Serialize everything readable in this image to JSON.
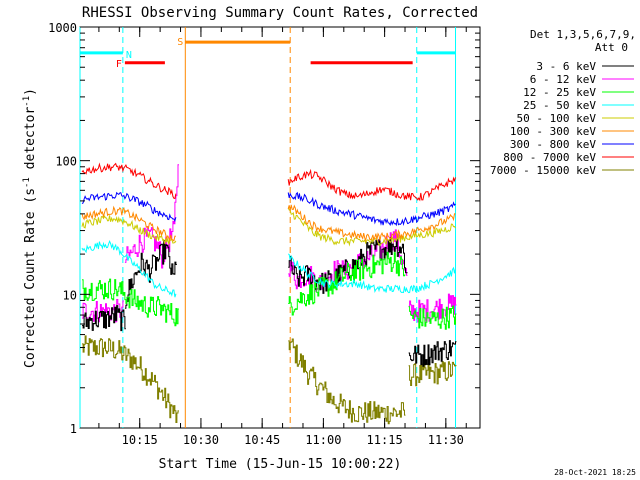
{
  "chart_data": {
    "type": "line",
    "title": "RHESSI Observing Summary Count Rates, Corrected",
    "ylabel": "Corrected Count Rate (s",
    "ylabel_sup1": "-1",
    "ylabel_mid": " detector",
    "ylabel_sup2": "-1",
    "ylabel_end": ")",
    "xlabel": "Start Time (15-Jun-15 10:00:22)",
    "x_unit": "minutes after 10:00:22",
    "xlim": [
      0,
      98
    ],
    "ylim": [
      1,
      1000
    ],
    "yscale": "log",
    "grid": false,
    "yticks": [
      {
        "label": "1",
        "value": 1
      },
      {
        "label": "10",
        "value": 10
      },
      {
        "label": "100",
        "value": 100
      },
      {
        "label": "1000",
        "value": 1000
      }
    ],
    "xticks": [
      {
        "label": "10:15",
        "value": 14.63
      },
      {
        "label": "10:30",
        "value": 29.63
      },
      {
        "label": "10:45",
        "value": 44.63
      },
      {
        "label": "11:00",
        "value": 59.63
      },
      {
        "label": "11:15",
        "value": 74.63
      },
      {
        "label": "11:30",
        "value": 89.63
      }
    ],
    "legend_header": [
      "Det 1,3,5,6,7,9,",
      "Att 0"
    ],
    "legend_position": "right",
    "timestamp": "28-Oct-2021 18:25",
    "series": [
      {
        "name": "3 - 6 keV",
        "color": "#000000",
        "kind": "band",
        "segments": [
          {
            "x": [
              0.5,
              3,
              6,
              9,
              10,
              11
            ],
            "y": [
              6,
              6.5,
              6.5,
              7,
              6.5,
              6
            ]
          },
          {
            "x": [
              11,
              13,
              15,
              17,
              19,
              21,
              22.5,
              23,
              23.6
            ],
            "y": [
              9,
              13,
              17,
              15,
              18,
              22,
              14,
              13,
              20
            ]
          },
          {
            "x": [
              51,
              53,
              56,
              59,
              62,
              65,
              68,
              70,
              73,
              75,
              77,
              79,
              80
            ],
            "y": [
              17,
              13,
              14,
              12,
              13,
              15,
              17,
              20,
              22,
              22,
              24,
              22,
              14
            ]
          },
          {
            "x": [
              80.5,
              84,
              88,
              92
            ],
            "y": [
              3.5,
              3.5,
              3.8,
              4
            ]
          }
        ]
      },
      {
        "name": "6 - 12 keV",
        "color": "#ff00ff",
        "kind": "band",
        "segments": [
          {
            "x": [
              0.5,
              3,
              6,
              9,
              10.5
            ],
            "y": [
              7.5,
              7.5,
              7.5,
              7.5,
              7.5
            ]
          },
          {
            "x": [
              11,
              13,
              15,
              17,
              19,
              20,
              21,
              22,
              23,
              24
            ],
            "y": [
              18,
              21,
              25,
              27,
              23,
              19,
              22,
              26,
              30,
              85
            ]
          },
          {
            "x": [
              51,
              53,
              56,
              59,
              62,
              65,
              68,
              71,
              74,
              77,
              80
            ],
            "y": [
              17,
              13,
              14,
              12,
              15,
              15,
              17,
              19,
              22,
              27,
              13
            ]
          },
          {
            "x": [
              80.5,
              84,
              88,
              92
            ],
            "y": [
              7.5,
              7.5,
              8,
              8.5
            ]
          }
        ]
      },
      {
        "name": "12 - 25 keV",
        "color": "#00ff00",
        "kind": "band",
        "segments": [
          {
            "x": [
              0.5,
              3,
              6,
              9,
              11,
              13,
              15,
              17,
              19,
              21,
              23,
              24
            ],
            "y": [
              11,
              11,
              11,
              11,
              10,
              9,
              8.5,
              8,
              8,
              7.5,
              7,
              7
            ]
          },
          {
            "x": [
              51,
              53,
              56,
              59,
              62,
              65,
              68,
              71,
              74,
              77,
              79.5
            ],
            "y": [
              8,
              9,
              10,
              11,
              12,
              14,
              15,
              16,
              17,
              18,
              15
            ]
          },
          {
            "x": [
              80.5,
              84,
              88,
              92
            ],
            "y": [
              7,
              6.5,
              6.5,
              7
            ]
          }
        ]
      },
      {
        "name": "25 - 50 keV",
        "color": "#00ffff",
        "kind": "line",
        "segments": [
          {
            "x": [
              0.5,
              2,
              4,
              6,
              8,
              10,
              12,
              14,
              16,
              18,
              20,
              22,
              23.5
            ],
            "y": [
              21,
              22,
              23,
              24,
              23,
              21,
              18,
              16,
              14,
              12,
              11,
              10.5,
              10
            ]
          },
          {
            "x": [
              51,
              52,
              54,
              56,
              58,
              60,
              62,
              64,
              66,
              68,
              70,
              72,
              74,
              76,
              78,
              80,
              82,
              84,
              86,
              88,
              90,
              92
            ],
            "y": [
              19,
              18,
              16,
              14,
              13,
              12,
              12,
              12,
              12,
              12,
              11.5,
              11,
              11,
              11,
              11,
              11,
              11,
              11.5,
              12,
              13,
              14,
              15
            ]
          }
        ]
      },
      {
        "name": "50 - 100 keV",
        "color": "#cccc00",
        "kind": "line",
        "segments": [
          {
            "x": [
              0.5,
              2,
              4,
              6,
              8,
              10,
              12,
              14,
              16,
              18,
              20,
              22,
              23.5
            ],
            "y": [
              33,
              34,
              35,
              36,
              37,
              36,
              34,
              31,
              29,
              27,
              26,
              25,
              24
            ]
          },
          {
            "x": [
              51,
              53,
              55,
              57,
              59,
              61,
              63,
              66,
              69,
              72,
              75,
              78,
              81,
              84,
              87,
              90,
              92
            ],
            "y": [
              42,
              38,
              33,
              29,
              27,
              26,
              25,
              25,
              25,
              25,
              25,
              26,
              27,
              28,
              29,
              31,
              33
            ]
          }
        ]
      },
      {
        "name": "100 - 300 keV",
        "color": "#ff8800",
        "kind": "line",
        "segments": [
          {
            "x": [
              0.5,
              2,
              4,
              6,
              8,
              10,
              12,
              14,
              16,
              18,
              20,
              22,
              23.5
            ],
            "y": [
              38,
              39,
              40,
              41,
              42,
              42,
              40,
              37,
              34,
              31,
              29,
              27,
              26
            ]
          },
          {
            "x": [
              51,
              53,
              55,
              57,
              59,
              61,
              63,
              66,
              69,
              72,
              75,
              78,
              81,
              84,
              87,
              90,
              92
            ],
            "y": [
              46,
              42,
              37,
              33,
              31,
              30,
              29,
              28,
              27,
              27,
              27,
              28,
              29,
              31,
              33,
              36,
              38
            ]
          }
        ]
      },
      {
        "name": "300 - 800 keV",
        "color": "#0000ff",
        "kind": "line",
        "segments": [
          {
            "x": [
              0.5,
              2,
              4,
              6,
              8,
              10,
              12,
              14,
              16,
              18,
              20,
              22,
              23.5
            ],
            "y": [
              51,
              52,
              53,
              54,
              55,
              55,
              53,
              50,
              47,
              43,
              40,
              38,
              36
            ]
          },
          {
            "x": [
              51,
              53,
              55,
              57,
              59,
              61,
              63,
              66,
              69,
              72,
              75,
              78,
              81,
              84,
              87,
              90,
              92
            ],
            "y": [
              56,
              54,
              52,
              49,
              46,
              44,
              42,
              40,
              38,
              36,
              35,
              35,
              36,
              38,
              40,
              43,
              46
            ]
          }
        ]
      },
      {
        "name": "800 - 7000 keV",
        "color": "#ff0000",
        "kind": "line",
        "segments": [
          {
            "x": [
              0.5,
              2,
              4,
              6,
              8,
              10,
              12,
              14,
              16,
              18,
              20,
              22,
              23.5
            ],
            "y": [
              83,
              85,
              87,
              89,
              90,
              89,
              85,
              79,
              73,
              67,
              62,
              58,
              55
            ]
          },
          {
            "x": [
              51,
              52,
              54,
              56,
              58,
              60,
              62,
              64,
              66,
              68,
              70,
              72,
              74,
              76,
              78,
              80,
              82,
              84,
              86,
              88,
              90,
              92
            ],
            "y": [
              68,
              72,
              76,
              79,
              77,
              70,
              63,
              58,
              55,
              54,
              56,
              59,
              61,
              59,
              56,
              54,
              53,
              54,
              58,
              63,
              68,
              72
            ]
          }
        ]
      },
      {
        "name": "7000 - 15000 keV",
        "color": "#808000",
        "kind": "band",
        "segments": [
          {
            "x": [
              0.5,
              3,
              6,
              9,
              11,
              13,
              15,
              17,
              19,
              21,
              23,
              24
            ],
            "y": [
              4,
              4,
              4,
              3.8,
              3.5,
              3.2,
              2.8,
              2.4,
              2,
              1.6,
              1.3,
              1.1
            ]
          },
          {
            "x": [
              51,
              53,
              56,
              59,
              62,
              65,
              68,
              71,
              74,
              77,
              79.5
            ],
            "y": [
              4.5,
              3.5,
              2.5,
              2,
              1.6,
              1.4,
              1.3,
              1.3,
              1.3,
              1.3,
              1.3
            ]
          },
          {
            "x": [
              80.5,
              84,
              88,
              92
            ],
            "y": [
              2.5,
              2.5,
              2.6,
              2.7
            ]
          }
        ]
      }
    ],
    "annotations": {
      "night": [
        {
          "type": "N",
          "label": "N",
          "start": 0,
          "end": 10.5,
          "span_from": 1,
          "span_to": 1000,
          "level": 640,
          "color": "#00ffff"
        },
        {
          "type": "N",
          "label": "",
          "start": 82.5,
          "end": 92,
          "span_from": 1,
          "span_to": 1000,
          "level": 640,
          "color": "#00ffff"
        }
      ],
      "saa": [
        {
          "type": "S",
          "label": "S",
          "start": 25.8,
          "end": 51.5,
          "span_from": 1,
          "span_to": 1000,
          "level": 770,
          "color": "#ff8800"
        }
      ],
      "flare": [
        {
          "type": "F",
          "label": "F",
          "start": 11,
          "end": 20.8,
          "level": 540,
          "color": "#ff0000"
        },
        {
          "type": "F",
          "label": "",
          "start": 56.5,
          "end": 81.5,
          "level": 540,
          "color": "#ff0000"
        }
      ]
    }
  }
}
